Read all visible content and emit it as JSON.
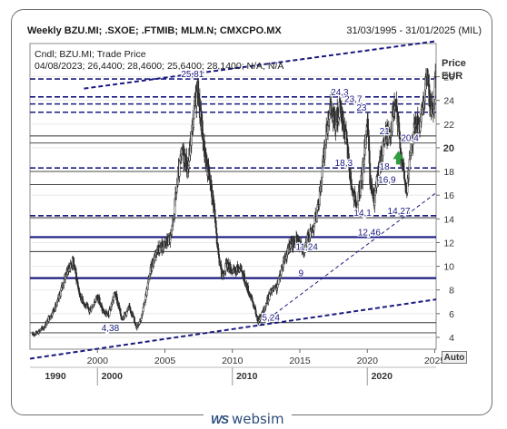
{
  "header": {
    "title": "Weekly BZU.MI; .SXOE; .FTMIB; MLM.N; CMXCPO.MX",
    "date_range": "31/03/1995 - 31/01/2025 (MIL)"
  },
  "info": {
    "line1": "Cndl; BZU.MI; Trade Price",
    "line2": "04/08/2023; 26,4400; 28,4600; 25,6400; 28,1400; N/A; N/A"
  },
  "axis": {
    "title1": "Price",
    "title2": "EUR",
    "auto_label": "Auto"
  },
  "logo": {
    "mark": "WS",
    "text": "websim"
  },
  "colors": {
    "price": "#2b2b2b",
    "level": "#1a1a80",
    "trend": "#1a1a80",
    "arrow": "#2e9e3e"
  },
  "chart_data": {
    "type": "candlestick",
    "xlim": [
      1995.0,
      2025.1
    ],
    "ylim": [
      3.0,
      28.8
    ],
    "x_ticks": [
      2000,
      2005,
      2010,
      2015,
      2020,
      2025
    ],
    "x_ticks_major": [
      1990,
      2000,
      2010,
      2020
    ],
    "y_ticks": [
      4,
      6,
      8,
      10,
      12,
      14,
      16,
      18,
      20,
      22,
      24,
      26
    ],
    "series": [
      {
        "x": [
          1995.2,
          1996.0,
          1997.0,
          1997.6,
          1998.2,
          1998.7,
          1999.4,
          2000.0,
          2000.4,
          2000.8,
          2001.3,
          2001.8,
          2002.4,
          2002.9,
          2003.3,
          2003.9,
          2004.4,
          2005.0,
          2005.5,
          2005.9,
          2006.3,
          2006.7,
          2007.1,
          2007.4,
          2007.6,
          2007.9,
          2008.2,
          2008.6,
          2008.9,
          2009.2,
          2009.6,
          2010.1,
          2010.6,
          2011.0,
          2011.5,
          2011.9,
          2012.3,
          2012.8,
          2013.3,
          2013.8,
          2014.3,
          2014.8,
          2015.3,
          2015.8,
          2016.3,
          2016.8,
          2017.2,
          2017.6,
          2018.0,
          2018.4,
          2018.8,
          2019.2,
          2019.6,
          2020.0,
          2020.2,
          2020.5,
          2020.9,
          2021.3,
          2021.7,
          2022.1,
          2022.5,
          2022.9,
          2023.3,
          2023.6,
          2023.9,
          2024.2,
          2024.4,
          2024.6,
          2024.9,
          2025.05
        ],
        "y": [
          4.2,
          4.8,
          6.8,
          9.2,
          10.5,
          7.5,
          6.2,
          7.5,
          6.2,
          5.8,
          7.8,
          5.6,
          6.5,
          4.9,
          5.8,
          9.5,
          11.5,
          11.8,
          12.5,
          17.0,
          19.8,
          18.2,
          22.5,
          25.2,
          23.0,
          20.0,
          18.0,
          15.5,
          11.5,
          9.2,
          10.2,
          9.5,
          10.0,
          8.5,
          7.0,
          5.4,
          6.2,
          7.8,
          8.2,
          10.5,
          11.8,
          12.2,
          11.5,
          12.8,
          14.5,
          19.5,
          23.5,
          22.0,
          23.2,
          21.0,
          17.0,
          14.8,
          17.5,
          22.5,
          17.0,
          15.5,
          18.5,
          21.0,
          21.5,
          23.8,
          19.5,
          16.2,
          20.5,
          22.2,
          21.8,
          23.5,
          26.5,
          24.0,
          23.0,
          27.0
        ]
      }
    ],
    "levels": [
      {
        "value": 25.81,
        "label": "25,81",
        "style": "dashed"
      },
      {
        "value": 24.3,
        "label": "24,3",
        "style": "dashed"
      },
      {
        "value": 23.7,
        "label": "23,7",
        "style": "dashed"
      },
      {
        "value": 23.0,
        "label": "23",
        "style": "dashed"
      },
      {
        "value": 21.0,
        "label": "21",
        "style": "solid-thin"
      },
      {
        "value": 20.4,
        "label": "20,4",
        "style": "solid-thin"
      },
      {
        "value": 18.3,
        "label": "18,3",
        "style": "dashed"
      },
      {
        "value": 18.0,
        "label": "18",
        "style": "solid-thin"
      },
      {
        "value": 16.9,
        "label": "16,9",
        "style": "solid-thin"
      },
      {
        "value": 14.27,
        "label": "14,27",
        "style": "dashed"
      },
      {
        "value": 14.1,
        "label": "14,1",
        "style": "solid-thin"
      },
      {
        "value": 12.46,
        "label": "12,46",
        "style": "solid-thick"
      },
      {
        "value": 11.24,
        "label": "11,24",
        "style": "solid-thin"
      },
      {
        "value": 9.0,
        "label": "9",
        "style": "solid-thick"
      },
      {
        "value": 5.24,
        "label": "5,24",
        "style": "solid-thin"
      },
      {
        "value": 4.38,
        "label": "4,38",
        "style": "solid-thin"
      }
    ],
    "trendlines": [
      {
        "x": [
          1999.0,
          2025.1
        ],
        "y": [
          25.0,
          29.0
        ],
        "style": "dashed"
      },
      {
        "x": [
          1995.0,
          2025.1
        ],
        "y": [
          2.2,
          7.2
        ],
        "style": "dashed"
      },
      {
        "x": [
          2012.0,
          2025.1
        ],
        "y": [
          5.0,
          16.2
        ],
        "style": "dashed-thin"
      }
    ],
    "arrow": {
      "x": 2022.3,
      "y": 19.2,
      "direction": "up"
    }
  }
}
